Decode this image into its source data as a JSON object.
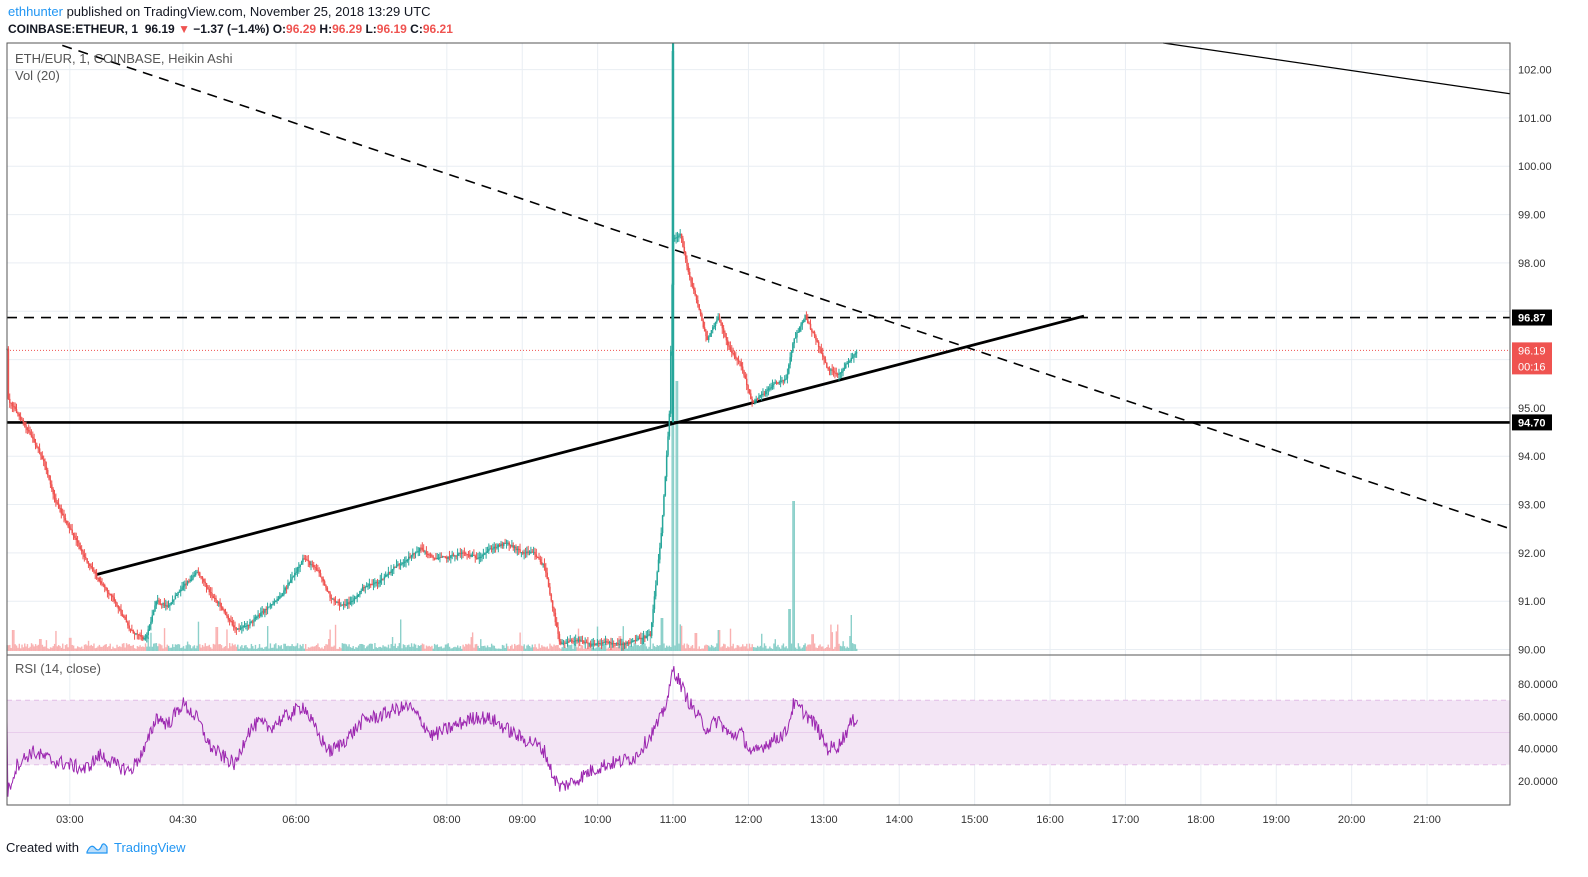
{
  "header": {
    "publisher": "ethhunter",
    "published_text": "published on TradingView.com, November 25, 2018 13:29 UTC",
    "symbol": "COINBASE:ETHEUR, 1",
    "last": "96.19",
    "change": "−1.37 (−1.4%)",
    "o_label": "O:",
    "o": "96.29",
    "h_label": "H:",
    "h": "96.29",
    "l_label": "L:",
    "l": "96.19",
    "c_label": "C:",
    "c": "96.21"
  },
  "footer": {
    "created_with": "Created with",
    "brand": "TradingView"
  },
  "colors": {
    "up": "#26a69a",
    "down": "#ef5350",
    "rsi_line": "#9c27b0",
    "rsi_band": "#e1bee7",
    "grid": "#e9eef3",
    "accent": "#2196f3"
  },
  "chart_data": {
    "type": "candlestick",
    "pane_title": "ETH/EUR, 1, COINBASE, Heikin Ashi",
    "volume_label": "Vol (20)",
    "y_ticks": [
      90,
      91,
      92,
      93,
      94,
      95,
      96,
      97,
      98,
      99,
      100,
      101,
      102
    ],
    "y_tick_labels": [
      "90.00",
      "91.00",
      "92.00",
      "93.00",
      "94.00",
      "95.00",
      "",
      "",
      "98.00",
      "99.00",
      "100.00",
      "101.00",
      "102.00"
    ],
    "ylim": [
      89.97,
      102.55
    ],
    "x_ticks": [
      "03:00",
      "04:30",
      "06:00",
      "08:00",
      "09:00",
      "10:00",
      "11:00",
      "12:00",
      "13:00",
      "14:00",
      "15:00",
      "16:00",
      "17:00",
      "18:00",
      "19:00",
      "20:00",
      "21:00"
    ],
    "x_tick_hours": [
      3,
      4.5,
      6,
      8,
      9,
      10,
      11,
      12,
      13,
      14,
      15,
      16,
      17,
      18,
      19,
      20,
      21
    ],
    "xlim_hours": [
      2.1667,
      22.1
    ],
    "price_path": [
      [
        2.17,
        95.2
      ],
      [
        2.3,
        94.9
      ],
      [
        2.5,
        94.4
      ],
      [
        2.65,
        93.9
      ],
      [
        2.8,
        93.1
      ],
      [
        3.0,
        92.5
      ],
      [
        3.2,
        91.9
      ],
      [
        3.4,
        91.4
      ],
      [
        3.6,
        91.0
      ],
      [
        3.8,
        90.4
      ],
      [
        4.0,
        90.2
      ],
      [
        4.15,
        91.0
      ],
      [
        4.3,
        90.9
      ],
      [
        4.5,
        91.3
      ],
      [
        4.7,
        91.6
      ],
      [
        4.85,
        91.2
      ],
      [
        5.0,
        90.9
      ],
      [
        5.2,
        90.4
      ],
      [
        5.35,
        90.5
      ],
      [
        5.5,
        90.7
      ],
      [
        5.65,
        90.9
      ],
      [
        5.8,
        91.1
      ],
      [
        5.95,
        91.5
      ],
      [
        6.1,
        91.9
      ],
      [
        6.3,
        91.6
      ],
      [
        6.45,
        91.1
      ],
      [
        6.6,
        90.9
      ],
      [
        6.75,
        91.0
      ],
      [
        6.9,
        91.3
      ],
      [
        7.1,
        91.4
      ],
      [
        7.3,
        91.7
      ],
      [
        7.5,
        91.9
      ],
      [
        7.65,
        92.1
      ],
      [
        7.8,
        91.9
      ],
      [
        8.0,
        91.9
      ],
      [
        8.2,
        92.0
      ],
      [
        8.4,
        91.9
      ],
      [
        8.6,
        92.1
      ],
      [
        8.8,
        92.2
      ],
      [
        9.0,
        92.0
      ],
      [
        9.15,
        92.0
      ],
      [
        9.3,
        91.7
      ],
      [
        9.4,
        90.9
      ],
      [
        9.5,
        90.1
      ],
      [
        9.7,
        90.2
      ],
      [
        9.9,
        90.1
      ],
      [
        10.1,
        90.15
      ],
      [
        10.3,
        90.1
      ],
      [
        10.5,
        90.2
      ],
      [
        10.7,
        90.3
      ],
      [
        10.85,
        92.5
      ],
      [
        10.95,
        94.8
      ],
      [
        11.0,
        98.5
      ],
      [
        11.1,
        98.6
      ],
      [
        11.2,
        97.8
      ],
      [
        11.3,
        97.3
      ],
      [
        11.45,
        96.4
      ],
      [
        11.6,
        96.9
      ],
      [
        11.75,
        96.2
      ],
      [
        11.9,
        95.9
      ],
      [
        12.05,
        95.1
      ],
      [
        12.2,
        95.3
      ],
      [
        12.35,
        95.5
      ],
      [
        12.5,
        95.6
      ],
      [
        12.6,
        96.4
      ],
      [
        12.75,
        96.9
      ],
      [
        12.9,
        96.4
      ],
      [
        13.05,
        95.8
      ],
      [
        13.2,
        95.7
      ],
      [
        13.35,
        96.0
      ],
      [
        13.45,
        96.2
      ]
    ],
    "volume_spikes": [
      [
        2.25,
        0.35
      ],
      [
        2.6,
        0.2
      ],
      [
        3.0,
        0.22
      ],
      [
        4.95,
        0.4
      ],
      [
        6.45,
        0.2
      ],
      [
        10.3,
        0.25
      ],
      [
        10.6,
        0.3
      ],
      [
        10.85,
        0.55
      ],
      [
        11.0,
        10.0
      ],
      [
        11.05,
        4.5
      ],
      [
        11.3,
        0.3
      ],
      [
        11.6,
        0.35
      ],
      [
        12.55,
        0.7
      ],
      [
        12.6,
        2.5
      ],
      [
        12.85,
        0.28
      ],
      [
        13.35,
        0.25
      ]
    ],
    "levels": [
      {
        "value": 96.87,
        "label": "96.87",
        "style": "dashed"
      },
      {
        "value": 94.7,
        "label": "94.70",
        "style": "solid"
      }
    ],
    "last_price": {
      "value": 96.19,
      "label": "96.19",
      "timer": "00:16"
    },
    "trendlines": [
      {
        "style": "dashed",
        "from": [
          2.9,
          102.5
        ],
        "to": [
          22.1,
          92.5
        ]
      },
      {
        "style": "solid-thick",
        "from": [
          3.35,
          91.55
        ],
        "to": [
          16.45,
          96.9
        ]
      },
      {
        "style": "solid-thin",
        "from": [
          17.5,
          102.55
        ],
        "to": [
          22.1,
          101.5
        ]
      }
    ],
    "rsi": {
      "label": "RSI (14, close)",
      "ylim": [
        5,
        95
      ],
      "y_ticks": [
        20,
        40,
        60,
        80
      ],
      "y_tick_labels": [
        "20.0000",
        "40.0000",
        "60.0000",
        "80.0000"
      ],
      "band": [
        30,
        70
      ],
      "path": [
        [
          2.17,
          12
        ],
        [
          2.3,
          30
        ],
        [
          2.5,
          38
        ],
        [
          2.65,
          35
        ],
        [
          2.8,
          32
        ],
        [
          3.0,
          30
        ],
        [
          3.2,
          27
        ],
        [
          3.4,
          36
        ],
        [
          3.6,
          30
        ],
        [
          3.8,
          26
        ],
        [
          4.0,
          40
        ],
        [
          4.15,
          60
        ],
        [
          4.3,
          55
        ],
        [
          4.5,
          68
        ],
        [
          4.7,
          58
        ],
        [
          4.85,
          42
        ],
        [
          5.0,
          36
        ],
        [
          5.2,
          30
        ],
        [
          5.35,
          50
        ],
        [
          5.5,
          56
        ],
        [
          5.65,
          53
        ],
        [
          5.8,
          58
        ],
        [
          5.95,
          62
        ],
        [
          6.1,
          67
        ],
        [
          6.3,
          48
        ],
        [
          6.45,
          38
        ],
        [
          6.6,
          43
        ],
        [
          6.75,
          50
        ],
        [
          6.9,
          58
        ],
        [
          7.1,
          60
        ],
        [
          7.3,
          64
        ],
        [
          7.5,
          66
        ],
        [
          7.65,
          58
        ],
        [
          7.8,
          48
        ],
        [
          8.0,
          52
        ],
        [
          8.2,
          56
        ],
        [
          8.4,
          60
        ],
        [
          8.6,
          58
        ],
        [
          8.8,
          52
        ],
        [
          9.0,
          46
        ],
        [
          9.15,
          44
        ],
        [
          9.3,
          38
        ],
        [
          9.4,
          24
        ],
        [
          9.5,
          16
        ],
        [
          9.7,
          20
        ],
        [
          9.9,
          26
        ],
        [
          10.1,
          30
        ],
        [
          10.3,
          32
        ],
        [
          10.5,
          35
        ],
        [
          10.7,
          48
        ],
        [
          10.85,
          60
        ],
        [
          10.95,
          75
        ],
        [
          11.0,
          90
        ],
        [
          11.1,
          80
        ],
        [
          11.2,
          70
        ],
        [
          11.3,
          62
        ],
        [
          11.45,
          52
        ],
        [
          11.6,
          58
        ],
        [
          11.75,
          48
        ],
        [
          11.9,
          50
        ],
        [
          12.05,
          36
        ],
        [
          12.2,
          42
        ],
        [
          12.35,
          46
        ],
        [
          12.5,
          50
        ],
        [
          12.6,
          68
        ],
        [
          12.75,
          62
        ],
        [
          12.9,
          54
        ],
        [
          13.05,
          40
        ],
        [
          13.2,
          42
        ],
        [
          13.35,
          55
        ],
        [
          13.45,
          60
        ]
      ]
    }
  }
}
